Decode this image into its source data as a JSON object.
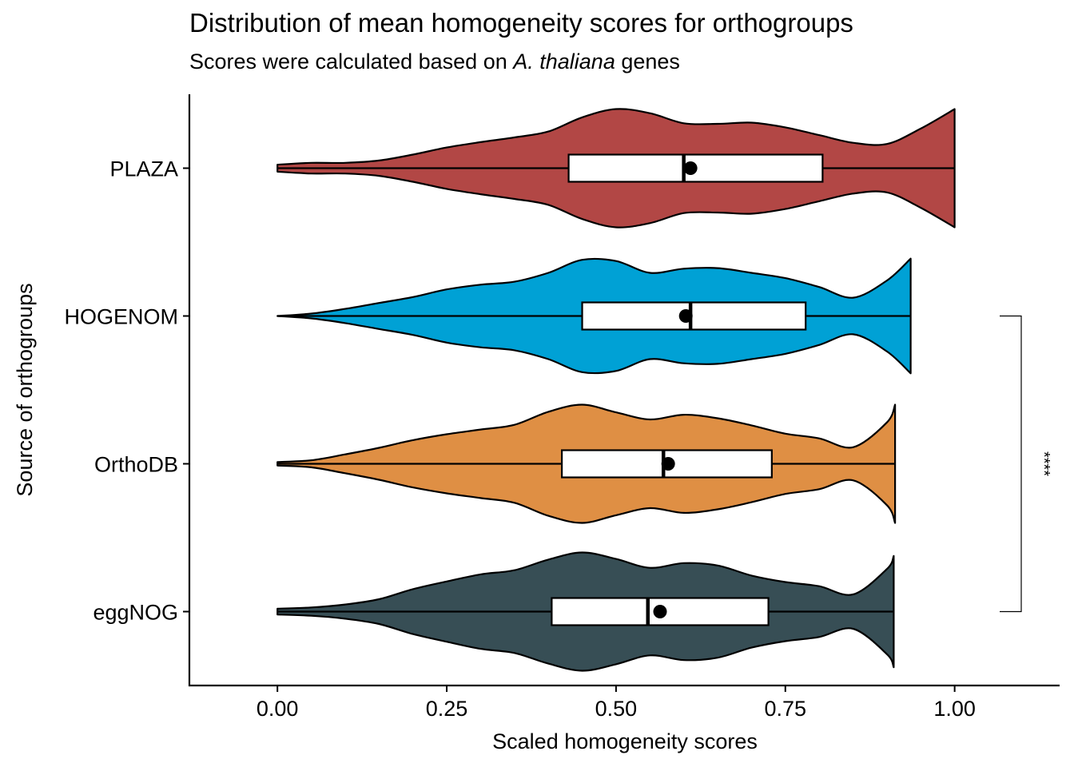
{
  "chart_data": {
    "type": "violin",
    "orientation": "horizontal",
    "title": "Distribution of mean homogeneity scores for orthogroups",
    "subtitle": {
      "before": "Scores were calculated based on ",
      "italic": "A. thaliana",
      "after": " genes"
    },
    "xlabel": "Scaled homogeneity scores",
    "ylabel": "Source of orthogroups",
    "xlim": [
      -0.13,
      1.155
    ],
    "xticks": [
      0,
      0.25,
      0.5,
      0.75,
      1
    ],
    "xtick_labels": [
      "0.00",
      "0.25",
      "0.50",
      "0.75",
      "1.00"
    ],
    "grid": false,
    "legend": "none",
    "series": [
      {
        "name": "PLAZA",
        "color": "#B24745",
        "min": 0.0,
        "max": 1.0,
        "box": {
          "q1": 0.43,
          "median": 0.6,
          "q3": 0.805,
          "whisker_low": 0.0,
          "whisker_high": 1.0
        },
        "mean": 0.61,
        "density": [
          [
            0.0,
            0.06
          ],
          [
            0.05,
            0.09
          ],
          [
            0.1,
            0.09
          ],
          [
            0.15,
            0.13
          ],
          [
            0.2,
            0.23
          ],
          [
            0.25,
            0.35
          ],
          [
            0.3,
            0.44
          ],
          [
            0.35,
            0.52
          ],
          [
            0.4,
            0.62
          ],
          [
            0.45,
            0.86
          ],
          [
            0.5,
            1.0
          ],
          [
            0.55,
            0.93
          ],
          [
            0.6,
            0.76
          ],
          [
            0.65,
            0.75
          ],
          [
            0.7,
            0.77
          ],
          [
            0.75,
            0.69
          ],
          [
            0.8,
            0.56
          ],
          [
            0.85,
            0.43
          ],
          [
            0.9,
            0.41
          ],
          [
            0.95,
            0.67
          ],
          [
            1.0,
            1.0
          ]
        ]
      },
      {
        "name": "HOGENOM",
        "color": "#00A1D5",
        "min": 0.0,
        "max": 0.935,
        "box": {
          "q1": 0.45,
          "median": 0.61,
          "q3": 0.78,
          "whisker_low": 0.0,
          "whisker_high": 0.935
        },
        "mean": 0.603,
        "density": [
          [
            0.0,
            0.0
          ],
          [
            0.05,
            0.04
          ],
          [
            0.1,
            0.12
          ],
          [
            0.15,
            0.22
          ],
          [
            0.2,
            0.32
          ],
          [
            0.25,
            0.45
          ],
          [
            0.3,
            0.53
          ],
          [
            0.35,
            0.58
          ],
          [
            0.4,
            0.73
          ],
          [
            0.45,
            0.95
          ],
          [
            0.5,
            0.93
          ],
          [
            0.55,
            0.73
          ],
          [
            0.6,
            0.8
          ],
          [
            0.65,
            0.81
          ],
          [
            0.7,
            0.73
          ],
          [
            0.75,
            0.64
          ],
          [
            0.8,
            0.49
          ],
          [
            0.85,
            0.31
          ],
          [
            0.9,
            0.6
          ],
          [
            0.935,
            0.97
          ]
        ]
      },
      {
        "name": "OrthoDB",
        "color": "#DF8F44",
        "min": 0.0,
        "max": 0.912,
        "box": {
          "q1": 0.42,
          "median": 0.57,
          "q3": 0.73,
          "whisker_low": 0.0,
          "whisker_high": 0.912
        },
        "mean": 0.577,
        "density": [
          [
            0.0,
            0.03
          ],
          [
            0.05,
            0.06
          ],
          [
            0.1,
            0.16
          ],
          [
            0.15,
            0.27
          ],
          [
            0.2,
            0.4
          ],
          [
            0.25,
            0.5
          ],
          [
            0.3,
            0.58
          ],
          [
            0.35,
            0.66
          ],
          [
            0.4,
            0.88
          ],
          [
            0.45,
            1.0
          ],
          [
            0.5,
            0.87
          ],
          [
            0.55,
            0.75
          ],
          [
            0.6,
            0.83
          ],
          [
            0.65,
            0.77
          ],
          [
            0.7,
            0.65
          ],
          [
            0.75,
            0.51
          ],
          [
            0.8,
            0.43
          ],
          [
            0.85,
            0.28
          ],
          [
            0.9,
            0.7
          ],
          [
            0.912,
            1.0
          ]
        ]
      },
      {
        "name": "eggNOG",
        "color": "#374E55",
        "min": 0.0,
        "max": 0.91,
        "box": {
          "q1": 0.405,
          "median": 0.547,
          "q3": 0.725,
          "whisker_low": 0.0,
          "whisker_high": 0.91
        },
        "mean": 0.565,
        "density": [
          [
            0.0,
            0.05
          ],
          [
            0.05,
            0.07
          ],
          [
            0.1,
            0.12
          ],
          [
            0.15,
            0.21
          ],
          [
            0.2,
            0.38
          ],
          [
            0.25,
            0.51
          ],
          [
            0.3,
            0.63
          ],
          [
            0.35,
            0.7
          ],
          [
            0.4,
            0.88
          ],
          [
            0.45,
            1.0
          ],
          [
            0.5,
            0.89
          ],
          [
            0.55,
            0.74
          ],
          [
            0.6,
            0.82
          ],
          [
            0.65,
            0.78
          ],
          [
            0.7,
            0.61
          ],
          [
            0.75,
            0.5
          ],
          [
            0.8,
            0.43
          ],
          [
            0.85,
            0.29
          ],
          [
            0.9,
            0.72
          ],
          [
            0.91,
            0.94
          ]
        ]
      }
    ],
    "significance": {
      "from": "HOGENOM",
      "to": "eggNOG",
      "label": "****"
    }
  }
}
